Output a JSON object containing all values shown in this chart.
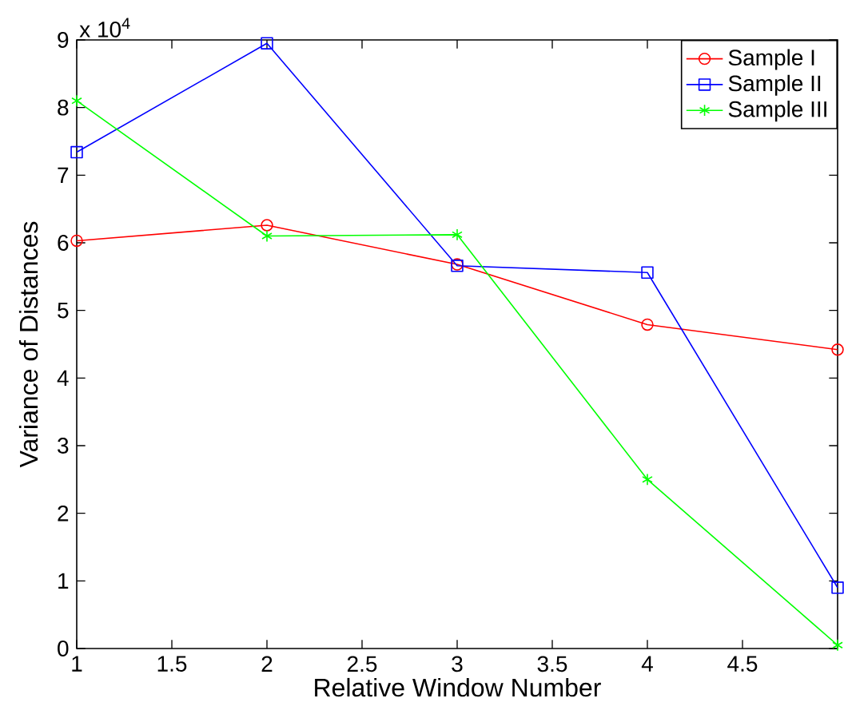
{
  "chart_data": {
    "type": "line",
    "xlabel": "Relative Window Number",
    "ylabel": "Variance of Distances",
    "annotations": [
      "x 10$^{4}$"
    ],
    "x": [
      1,
      2,
      3,
      4,
      5
    ],
    "series": [
      {
        "name": "Sample I",
        "color": "#ff0000",
        "marker": "circle",
        "values": [
          6.03,
          6.26,
          5.68,
          4.79,
          4.42
        ]
      },
      {
        "name": "Sample II",
        "color": "#0000ff",
        "marker": "square",
        "values": [
          7.34,
          8.95,
          5.66,
          5.56,
          0.9
        ]
      },
      {
        "name": "Sample III",
        "color": "#00ff00",
        "marker": "cross",
        "values": [
          8.1,
          6.1,
          6.12,
          2.5,
          0.05
        ]
      }
    ],
    "xlim": [
      1,
      5
    ],
    "ylim": [
      0,
      9
    ],
    "xticks": [
      1,
      1.5,
      2,
      2.5,
      3,
      3.5,
      4,
      4.5
    ],
    "yticks": [
      0,
      1,
      2,
      3,
      4,
      5,
      6,
      7,
      8,
      9
    ],
    "legend": "top right",
    "grid": false,
    "line_style": "solid"
  }
}
